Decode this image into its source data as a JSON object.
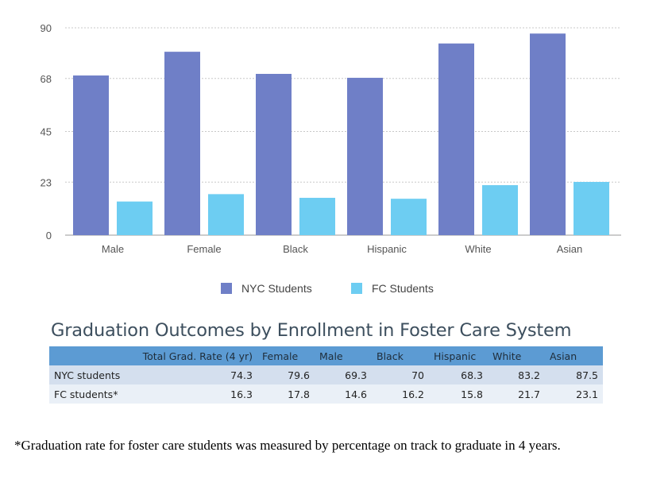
{
  "chart_data": {
    "type": "bar",
    "categories": [
      "Male",
      "Female",
      "Black",
      "Hispanic",
      "White",
      "Asian"
    ],
    "series": [
      {
        "name": "NYC Students",
        "values": [
          69.3,
          79.6,
          70,
          68.3,
          83.2,
          87.5
        ],
        "color": "#6f7fc7"
      },
      {
        "name": "FC Students",
        "values": [
          14.6,
          17.8,
          16.2,
          15.8,
          21.7,
          23.1
        ],
        "color": "#6dcdf2"
      }
    ],
    "yticks": [
      0,
      23,
      45,
      68,
      90
    ],
    "ylim": [
      0,
      90
    ],
    "grid": true,
    "legend_position": "bottom"
  },
  "legend": {
    "nyc_label": "NYC Students",
    "fc_label": "FC Students"
  },
  "table": {
    "title": "Graduation Outcomes by Enrollment in Foster Care System",
    "headers": [
      "",
      "Total Grad. Rate (4 yr)",
      "Female",
      "Male",
      "Black",
      "Hispanic",
      "White",
      "Asian"
    ],
    "rows": [
      [
        "NYC students",
        "74.3",
        "79.6",
        "69.3",
        "70",
        "68.3",
        "83.2",
        "87.5"
      ],
      [
        "FC students*",
        "16.3",
        "17.8",
        "14.6",
        "16.2",
        "15.8",
        "21.7",
        "23.1"
      ]
    ]
  },
  "footnote": "*Graduation rate for foster care students was measured by percentage on track to graduate in 4 years."
}
